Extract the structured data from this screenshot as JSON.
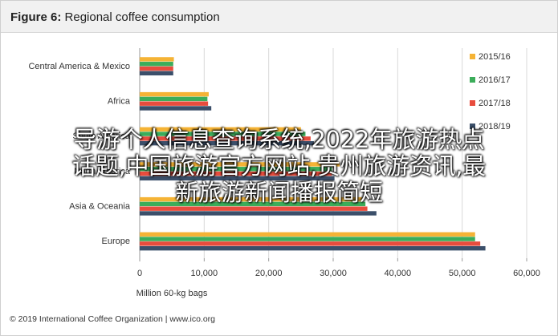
{
  "title_prefix": "Figure 6:",
  "title_text": "Regional coffee consumption",
  "source": "© 2019 International Coffee Organization | www.ico.org",
  "overlay_lines": [
    "导游个人信息查询系统,2022年旅游热点",
    "话题,中国旅游官方网站,贵州旅游资讯,最",
    "新旅游新闻播报简短"
  ],
  "chart_data": {
    "type": "bar",
    "orientation": "horizontal",
    "categories": [
      "Central America & Mexico",
      "Africa",
      "South America",
      "North America",
      "Asia & Oceania",
      "Europe"
    ],
    "series": [
      {
        "name": "2015/16",
        "values": [
          5300,
          10700,
          25000,
          31000,
          34500,
          52000
        ]
      },
      {
        "name": "2016/17",
        "values": [
          5200,
          10500,
          25700,
          29800,
          35000,
          52000
        ]
      },
      {
        "name": "2017/18",
        "values": [
          5200,
          10600,
          26500,
          29800,
          35300,
          52800
        ]
      },
      {
        "name": "2018/19",
        "values": [
          5200,
          11100,
          27000,
          30200,
          36700,
          53600
        ]
      }
    ],
    "colors": [
      "#f5b335",
      "#3cad5a",
      "#e84c3d",
      "#3b4f6a"
    ],
    "xlabel": "Million 60-kg bags",
    "xlim": [
      0,
      60000
    ],
    "xticks": [
      "0",
      "10,000",
      "20,000",
      "30,000",
      "40,000",
      "50,000",
      "60,000"
    ],
    "legend_position": "top-right",
    "grid": true
  }
}
